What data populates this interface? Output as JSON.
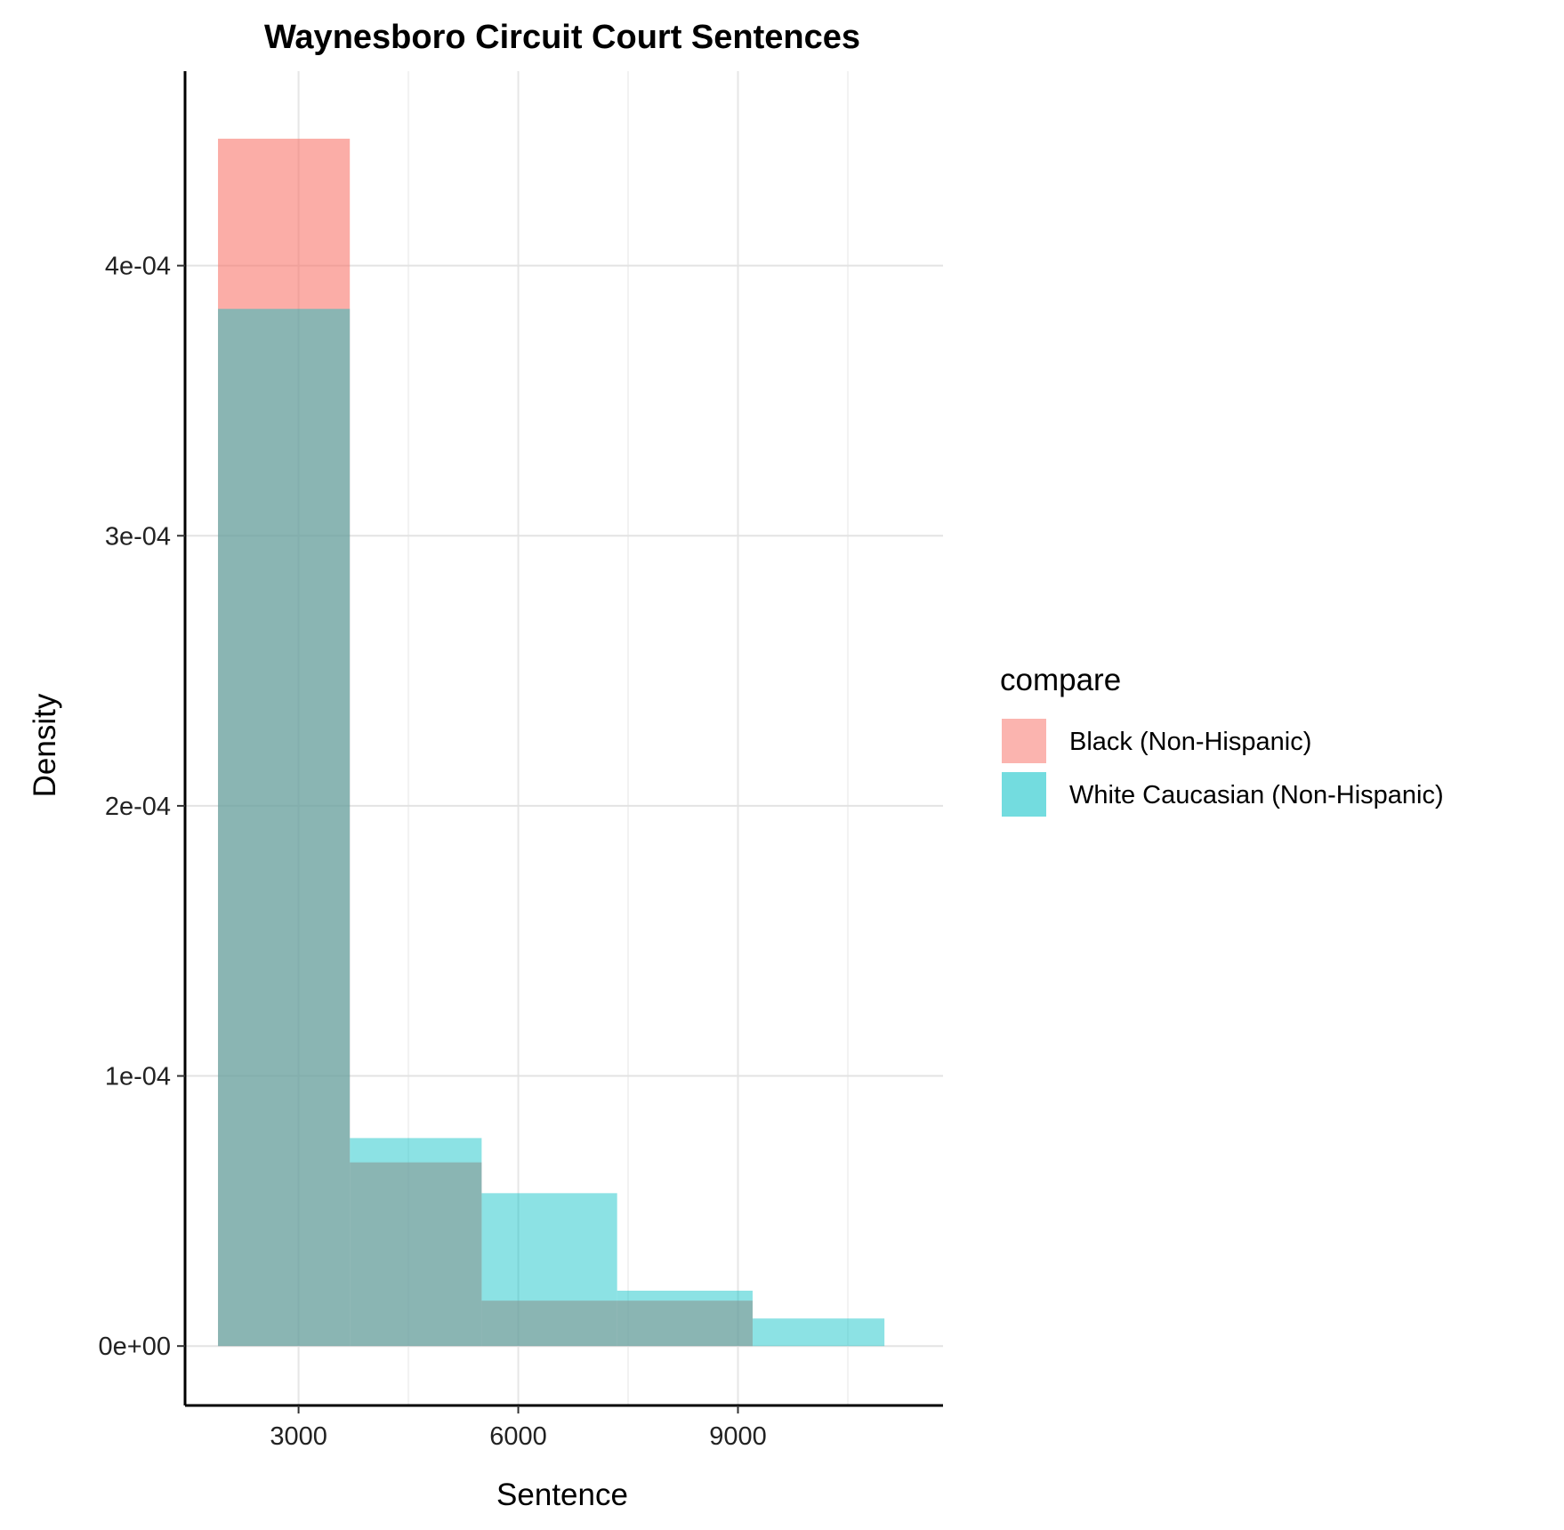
{
  "chart_data": {
    "type": "bar",
    "title": "Waynesboro Circuit Court Sentences",
    "xlabel": "Sentence",
    "ylabel": "Density",
    "xlim": [
      1450,
      11800
    ],
    "ylim": [
      -2.2e-05,
      0.000472
    ],
    "x_ticks": [
      3000,
      6000,
      9000
    ],
    "x_tick_labels": [
      "3000",
      "6000",
      "9000"
    ],
    "y_ticks": [
      0,
      0.0001,
      0.0002,
      0.0003,
      0.0004
    ],
    "y_tick_labels": [
      "0e+00",
      "1e-04",
      "2e-04",
      "3e-04",
      "4e-04"
    ],
    "x_grid_minor": [
      4500,
      7500,
      10500
    ],
    "grid": true,
    "bins": [
      [
        1900,
        3700
      ],
      [
        3700,
        5500
      ],
      [
        5500,
        7350
      ],
      [
        7350,
        9200
      ],
      [
        9200,
        11000
      ]
    ],
    "series": [
      {
        "name": "Black (Non-Hispanic)",
        "color": "#F8766D",
        "opacity": 0.6,
        "values": [
          0.000447,
          6.8e-05,
          1.68e-05,
          1.68e-05,
          0
        ]
      },
      {
        "name": "White Caucasian (Non-Hispanic)",
        "color": "#00BFC4",
        "opacity": 0.45,
        "values": [
          0.000384,
          7.7e-05,
          5.66e-05,
          2.05e-05,
          1.02e-05
        ]
      }
    ],
    "legend": {
      "title": "compare",
      "position": "right",
      "items": [
        {
          "label": "Black (Non-Hispanic)",
          "color": "#F8766D"
        },
        {
          "label": "White Caucasian (Non-Hispanic)",
          "color": "#00BFC4"
        }
      ]
    }
  }
}
